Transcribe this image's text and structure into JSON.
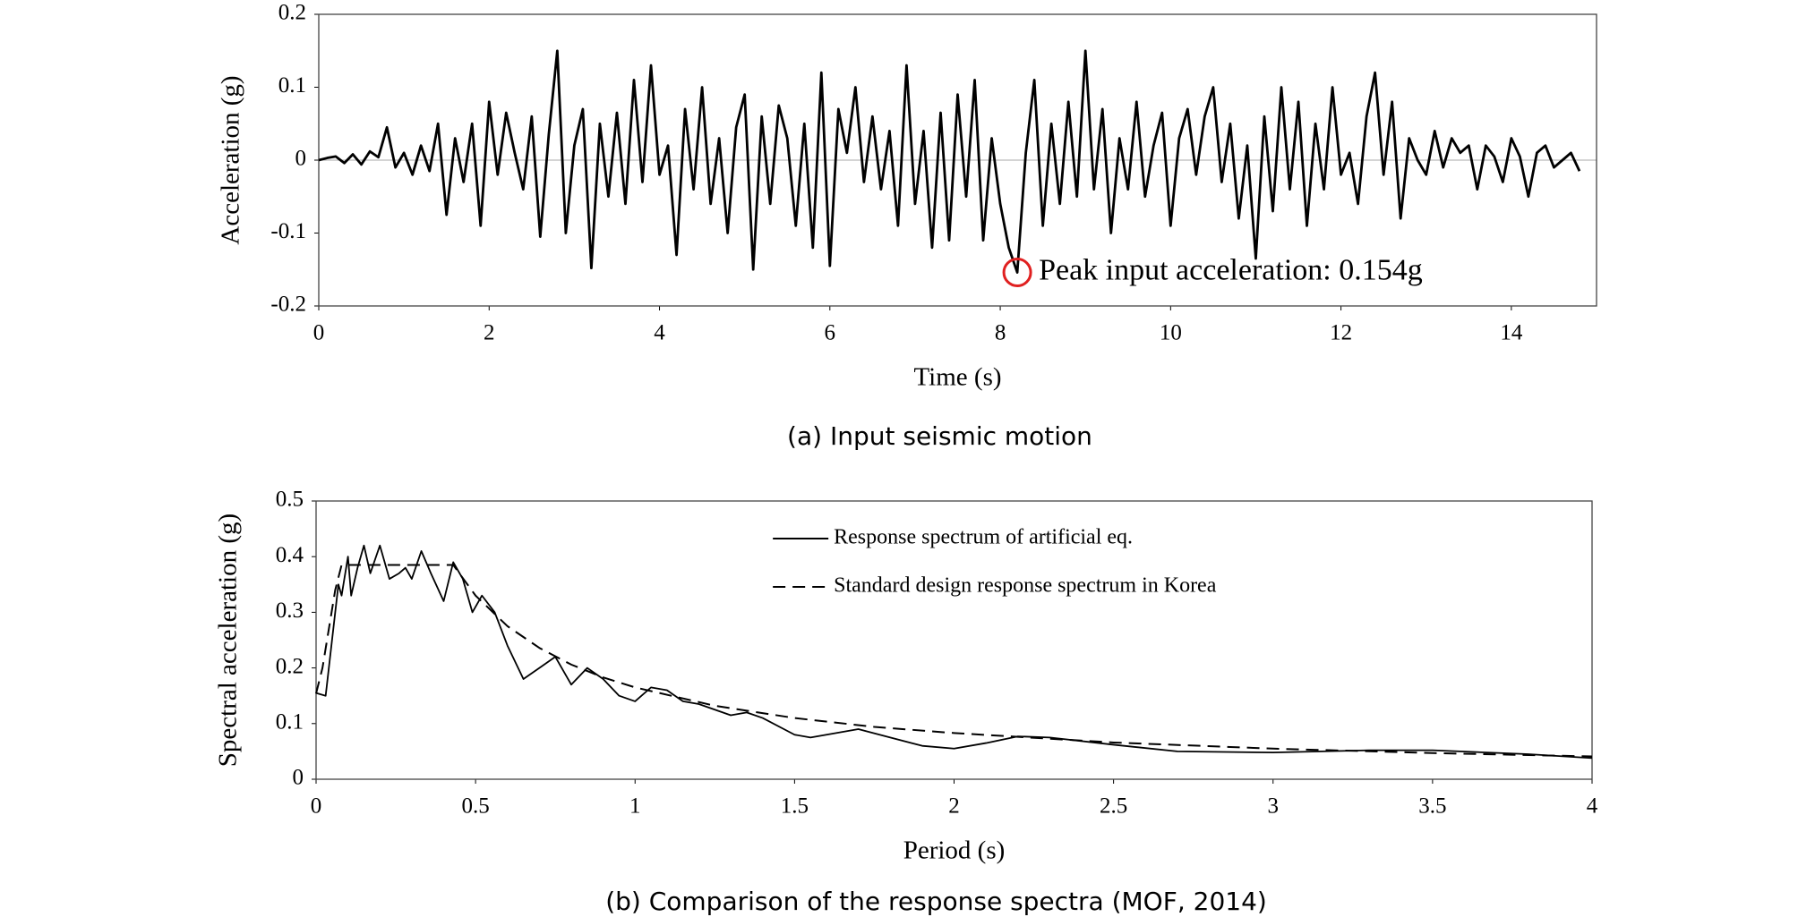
{
  "chart_data": [
    {
      "type": "line",
      "caption": "(a) Input seismic motion",
      "x_label": "Time (s)",
      "y_label": "Acceleration (g)",
      "xlim": [
        0,
        15
      ],
      "xticks": [
        0,
        2,
        4,
        6,
        8,
        10,
        12,
        14
      ],
      "ylim": [
        -0.2,
        0.2
      ],
      "yticks": [
        -0.2,
        -0.1,
        0,
        0.1,
        0.2
      ],
      "series": [
        {
          "color": "#000000",
          "dashed": false,
          "x": [
            0,
            0.1,
            0.2,
            0.3,
            0.4,
            0.5,
            0.6,
            0.7,
            0.8,
            0.9,
            1,
            1.1,
            1.2,
            1.3,
            1.4,
            1.5,
            1.6,
            1.7,
            1.8,
            1.9,
            2,
            2.1,
            2.2,
            2.3,
            2.4,
            2.5,
            2.6,
            2.7,
            2.8,
            2.9,
            3,
            3.1,
            3.2,
            3.3,
            3.4,
            3.5,
            3.6,
            3.7,
            3.8,
            3.9,
            4,
            4.1,
            4.2,
            4.3,
            4.4,
            4.5,
            4.6,
            4.7,
            4.8,
            4.9,
            5,
            5.1,
            5.2,
            5.3,
            5.4,
            5.5,
            5.6,
            5.7,
            5.8,
            5.9,
            6,
            6.1,
            6.2,
            6.3,
            6.4,
            6.5,
            6.6,
            6.7,
            6.8,
            6.9,
            7,
            7.1,
            7.2,
            7.3,
            7.4,
            7.5,
            7.6,
            7.7,
            7.8,
            7.9,
            8,
            8.1,
            8.2,
            8.3,
            8.4,
            8.5,
            8.6,
            8.7,
            8.8,
            8.9,
            9,
            9.1,
            9.2,
            9.3,
            9.4,
            9.5,
            9.6,
            9.7,
            9.8,
            9.9,
            10,
            10.1,
            10.2,
            10.3,
            10.4,
            10.5,
            10.6,
            10.7,
            10.8,
            10.9,
            11,
            11.1,
            11.2,
            11.3,
            11.4,
            11.5,
            11.6,
            11.7,
            11.8,
            11.9,
            12,
            12.1,
            12.2,
            12.3,
            12.4,
            12.5,
            12.6,
            12.7,
            12.8,
            12.9,
            13,
            13.1,
            13.2,
            13.3,
            13.4,
            13.5,
            13.6,
            13.7,
            13.8,
            13.9,
            14,
            14.1,
            14.2,
            14.3,
            14.4,
            14.5,
            14.6,
            14.7,
            14.8
          ],
          "values": [
            0,
            0.003,
            0.005,
            -0.004,
            0.008,
            -0.006,
            0.012,
            0.004,
            0.045,
            -0.01,
            0.01,
            -0.02,
            0.02,
            -0.015,
            0.05,
            -0.075,
            0.03,
            -0.03,
            0.05,
            -0.09,
            0.08,
            -0.02,
            0.065,
            0.01,
            -0.04,
            0.06,
            -0.105,
            0.035,
            0.15,
            -0.1,
            0.02,
            0.07,
            -0.148,
            0.05,
            -0.05,
            0.065,
            -0.06,
            0.11,
            -0.03,
            0.13,
            -0.02,
            0.02,
            -0.13,
            0.07,
            -0.04,
            0.1,
            -0.06,
            0.03,
            -0.1,
            0.045,
            0.09,
            -0.15,
            0.06,
            -0.06,
            0.075,
            0.03,
            -0.09,
            0.05,
            -0.12,
            0.12,
            -0.145,
            0.07,
            0.01,
            0.1,
            -0.03,
            0.06,
            -0.04,
            0.04,
            -0.09,
            0.13,
            -0.06,
            0.04,
            -0.12,
            0.065,
            -0.11,
            0.09,
            -0.05,
            0.11,
            -0.11,
            0.03,
            -0.06,
            -0.12,
            -0.154,
            0.01,
            0.11,
            -0.09,
            0.05,
            -0.06,
            0.08,
            -0.05,
            0.15,
            -0.04,
            0.07,
            -0.1,
            0.03,
            -0.04,
            0.08,
            -0.05,
            0.02,
            0.065,
            -0.09,
            0.03,
            0.07,
            -0.02,
            0.06,
            0.1,
            -0.03,
            0.05,
            -0.08,
            0.02,
            -0.135,
            0.06,
            -0.07,
            0.1,
            -0.04,
            0.08,
            -0.09,
            0.05,
            -0.04,
            0.1,
            -0.02,
            0.01,
            -0.06,
            0.06,
            0.12,
            -0.02,
            0.08,
            -0.08,
            0.03,
            0,
            -0.02,
            0.04,
            -0.01,
            0.03,
            0.01,
            0.02,
            -0.04,
            0.02,
            0.005,
            -0.03,
            0.03,
            0.005,
            -0.05,
            0.01,
            0.02,
            -0.01,
            0,
            0.01,
            -0.015
          ]
        }
      ],
      "annotation": {
        "text": "Peak input acceleration: 0.154g",
        "x": 8.2,
        "y": -0.154,
        "color": "#e02020"
      }
    },
    {
      "type": "line",
      "caption": "(b) Comparison of the response spectra (MOF, 2014)",
      "x_label": "Period (s)",
      "y_label": "Spectral acceleration (g)",
      "xlim": [
        0,
        4
      ],
      "xticks": [
        0,
        0.5,
        1,
        1.5,
        2,
        2.5,
        3,
        3.5,
        4
      ],
      "ylim": [
        0,
        0.5
      ],
      "yticks": [
        0,
        0.1,
        0.2,
        0.3,
        0.4,
        0.5
      ],
      "legend": "upper-right",
      "series": [
        {
          "name": "Response spectrum of artificial eq.",
          "color": "#000000",
          "dashed": false,
          "x": [
            0,
            0.03,
            0.05,
            0.07,
            0.08,
            0.1,
            0.11,
            0.13,
            0.15,
            0.17,
            0.2,
            0.23,
            0.26,
            0.28,
            0.3,
            0.33,
            0.36,
            0.4,
            0.43,
            0.46,
            0.49,
            0.52,
            0.56,
            0.6,
            0.65,
            0.7,
            0.75,
            0.8,
            0.85,
            0.9,
            0.95,
            1,
            1.05,
            1.1,
            1.15,
            1.2,
            1.3,
            1.35,
            1.4,
            1.5,
            1.55,
            1.7,
            1.8,
            1.9,
            2,
            2.1,
            2.2,
            2.3,
            2.5,
            2.7,
            3,
            3.3,
            3.5,
            3.8,
            4
          ],
          "values": [
            0.155,
            0.15,
            0.25,
            0.35,
            0.33,
            0.4,
            0.33,
            0.38,
            0.42,
            0.37,
            0.42,
            0.36,
            0.37,
            0.38,
            0.36,
            0.41,
            0.37,
            0.32,
            0.39,
            0.36,
            0.3,
            0.33,
            0.3,
            0.24,
            0.18,
            0.2,
            0.22,
            0.17,
            0.2,
            0.18,
            0.15,
            0.14,
            0.165,
            0.16,
            0.14,
            0.135,
            0.115,
            0.12,
            0.11,
            0.08,
            0.075,
            0.09,
            0.075,
            0.06,
            0.055,
            0.065,
            0.077,
            0.075,
            0.062,
            0.05,
            0.048,
            0.052,
            0.052,
            0.045,
            0.038
          ]
        },
        {
          "name": "Standard design response spectrum in Korea",
          "color": "#000000",
          "dashed": true,
          "x": [
            0,
            0.02,
            0.04,
            0.06,
            0.08,
            0.1,
            0.2,
            0.3,
            0.43,
            0.5,
            0.6,
            0.7,
            0.8,
            0.9,
            1,
            1.25,
            1.5,
            1.75,
            2,
            2.5,
            3,
            3.5,
            4
          ],
          "values": [
            0.154,
            0.2,
            0.27,
            0.34,
            0.385,
            0.385,
            0.385,
            0.385,
            0.385,
            0.33,
            0.275,
            0.236,
            0.206,
            0.183,
            0.165,
            0.132,
            0.11,
            0.094,
            0.083,
            0.066,
            0.055,
            0.047,
            0.041
          ]
        }
      ]
    }
  ]
}
